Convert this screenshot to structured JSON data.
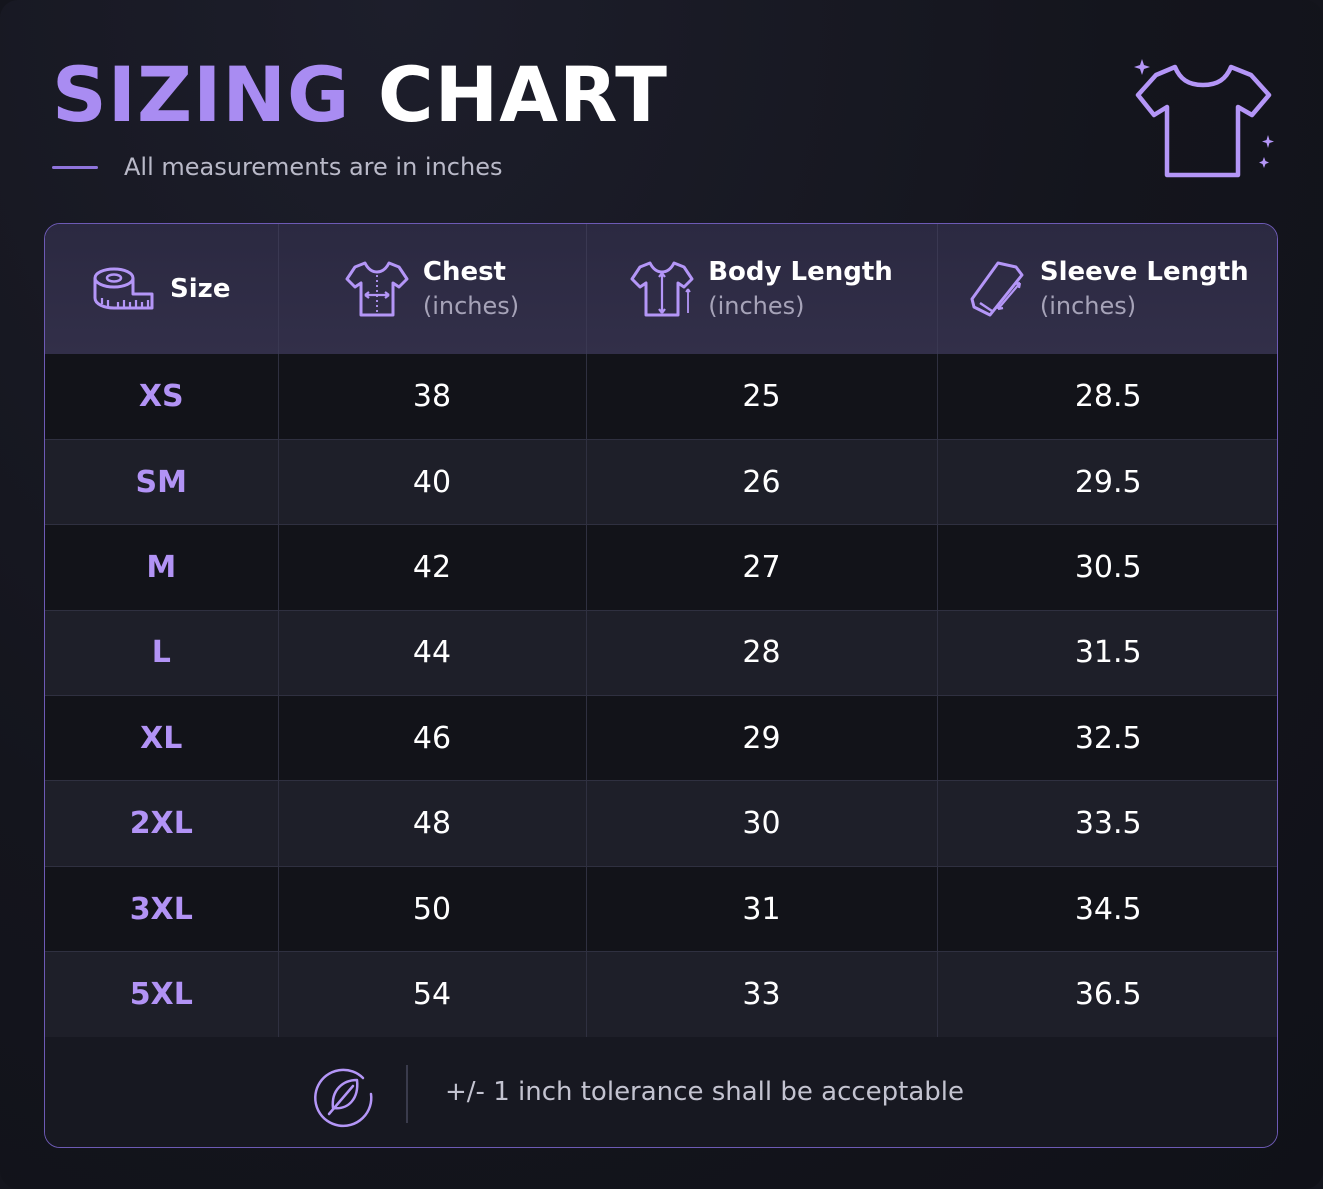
{
  "header": {
    "title_part1": "SIZING",
    "title_part2": "CHART",
    "subtitle": "All measurements are in inches"
  },
  "accent_color": "#a98cf2",
  "icons": {
    "header": "t-shirt-sparkle-icon",
    "size": "measuring-tape-icon",
    "chest": "shirt-chest-measure-icon",
    "body_length": "shirt-length-measure-icon",
    "sleeve_length": "sleeve-measure-icon",
    "footer": "leaf-icon"
  },
  "table": {
    "columns": [
      {
        "label": "Size",
        "unit": ""
      },
      {
        "label": "Chest",
        "unit": "(inches)"
      },
      {
        "label": "Body Length",
        "unit": "(inches)"
      },
      {
        "label": "Sleeve Length",
        "unit": "(inches)"
      }
    ],
    "rows": [
      {
        "size": "XS",
        "chest": "38",
        "body_length": "25",
        "sleeve_length": "28.5"
      },
      {
        "size": "SM",
        "chest": "40",
        "body_length": "26",
        "sleeve_length": "29.5"
      },
      {
        "size": "M",
        "chest": "42",
        "body_length": "27",
        "sleeve_length": "30.5"
      },
      {
        "size": "L",
        "chest": "44",
        "body_length": "28",
        "sleeve_length": "31.5"
      },
      {
        "size": "XL",
        "chest": "46",
        "body_length": "29",
        "sleeve_length": "32.5"
      },
      {
        "size": "2XL",
        "chest": "48",
        "body_length": "30",
        "sleeve_length": "33.5"
      },
      {
        "size": "3XL",
        "chest": "50",
        "body_length": "31",
        "sleeve_length": "34.5"
      },
      {
        "size": "5XL",
        "chest": "54",
        "body_length": "33",
        "sleeve_length": "36.5"
      }
    ]
  },
  "footer": {
    "note": "+/- 1 inch tolerance shall be acceptable"
  }
}
